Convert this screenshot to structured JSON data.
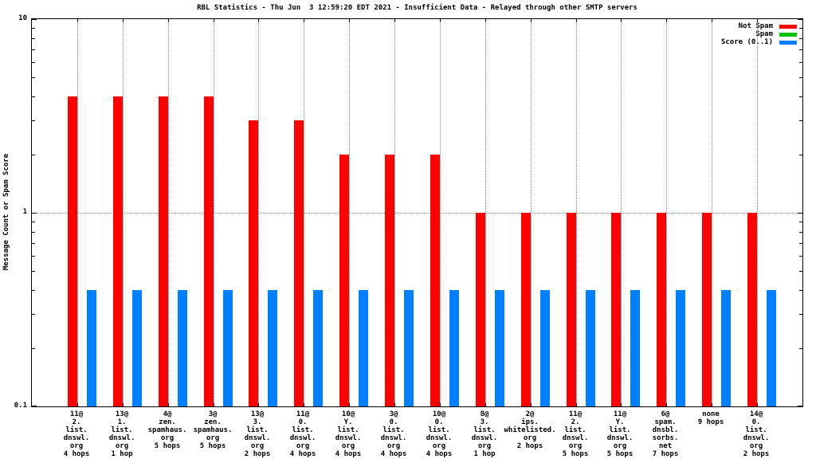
{
  "title": "RBL Statistics - Thu Jun  3 12:59:20 EDT 2021 - Insufficient Data - Relayed through other SMTP servers",
  "ylabel": "Message Count or Spam Score",
  "colors": {
    "not_spam": "#ff0000",
    "spam": "#00c000",
    "score": "#0080ff",
    "grid": "#8a8a8a",
    "axis": "#000000"
  },
  "chart_data": {
    "type": "bar",
    "y_scale": "log",
    "ylim": [
      0.1,
      10
    ],
    "ytick_labels": [
      {
        "value": 10,
        "label": "10"
      },
      {
        "value": 1,
        "label": "1"
      },
      {
        "value": 0.1,
        "label": "0.1"
      }
    ],
    "grid": "dotted vertical line at each category, dotted horizontal line at y=1",
    "legend_position": "top-right-inside",
    "categories": [
      [
        "11@",
        "2.",
        "list.",
        "dnswl.",
        "org",
        "4 hops"
      ],
      [
        "13@",
        "1.",
        "list.",
        "dnswl.",
        "org",
        "1 hop"
      ],
      [
        "4@",
        "zen.",
        "spamhaus.",
        "org",
        "5 hops"
      ],
      [
        "3@",
        "zen.",
        "spamhaus.",
        "org",
        "5 hops"
      ],
      [
        "13@",
        "3.",
        "list.",
        "dnswl.",
        "org",
        "2 hops"
      ],
      [
        "11@",
        "0.",
        "list.",
        "dnswl.",
        "org",
        "4 hops"
      ],
      [
        "10@",
        "Y.",
        "list.",
        "dnswl.",
        "org",
        "4 hops"
      ],
      [
        "3@",
        "0.",
        "list.",
        "dnswl.",
        "org",
        "4 hops"
      ],
      [
        "10@",
        "0.",
        "list.",
        "dnswl.",
        "org",
        "4 hops"
      ],
      [
        "8@",
        "3.",
        "list.",
        "dnswl.",
        "org",
        "1 hop"
      ],
      [
        "2@",
        "ips.",
        "whitelisted.",
        "org",
        "2 hops"
      ],
      [
        "11@",
        "2.",
        "list.",
        "dnswl.",
        "org",
        "5 hops"
      ],
      [
        "11@",
        "Y.",
        "list.",
        "dnswl.",
        "org",
        "5 hops"
      ],
      [
        "6@",
        "spam.",
        "dnsbl.",
        "sorbs.",
        "net",
        "7 hops"
      ],
      [
        "none",
        "9 hops"
      ],
      [
        "14@",
        "0.",
        "list.",
        "dnswl.",
        "org",
        "2 hops"
      ]
    ],
    "series": [
      {
        "name": "Not Spam",
        "color": "#ff0000",
        "values": [
          4,
          4,
          4,
          4,
          3,
          3,
          2,
          2,
          2,
          1,
          1,
          1,
          1,
          1,
          1,
          1
        ]
      },
      {
        "name": "Spam",
        "color": "#00c000",
        "values": [
          0,
          0,
          0,
          0,
          0,
          0,
          0,
          0,
          0,
          0,
          0,
          0,
          0,
          0,
          0,
          0
        ]
      },
      {
        "name": "Score (0..1)",
        "color": "#0080ff",
        "values": [
          0.4,
          0.4,
          0.4,
          0.4,
          0.4,
          0.4,
          0.4,
          0.4,
          0.4,
          0.4,
          0.4,
          0.4,
          0.4,
          0.4,
          0.4,
          0.4
        ]
      }
    ]
  }
}
